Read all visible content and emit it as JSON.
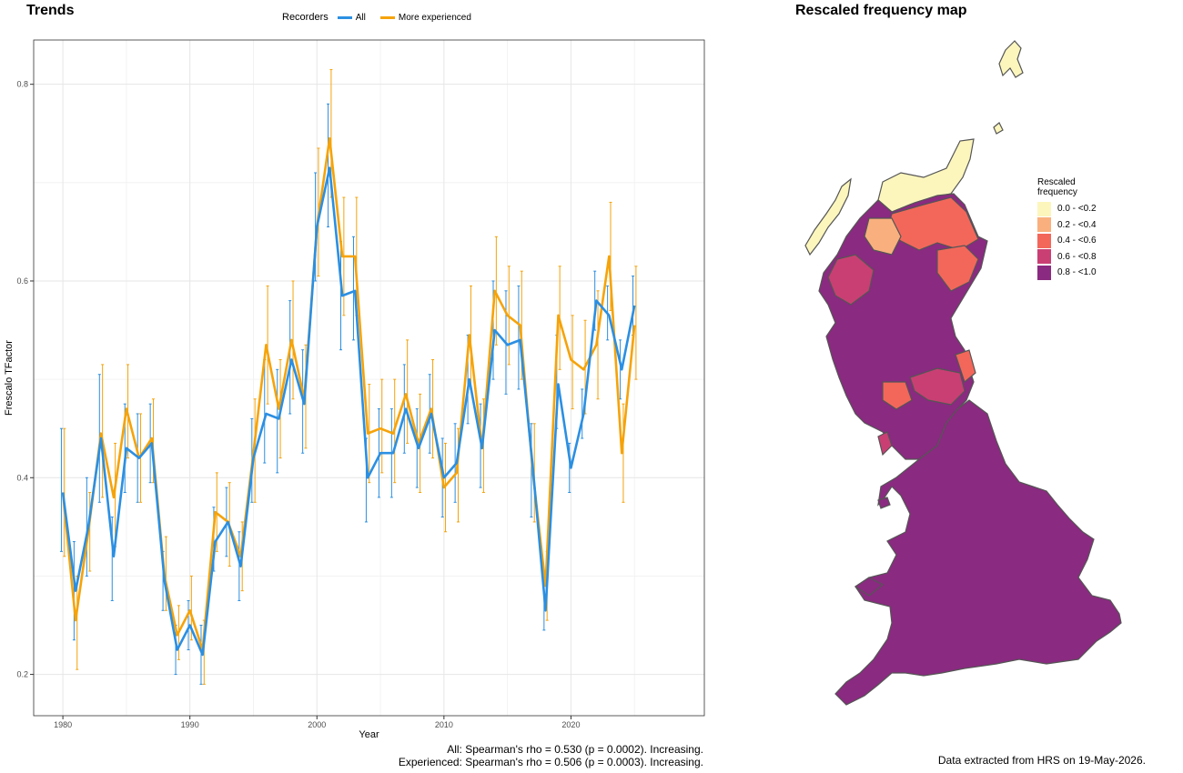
{
  "trends": {
    "title": "Trends",
    "legend_title": "Recorders",
    "xlabel": "Year",
    "ylabel": "Frescalo TFactor",
    "stats_all": "All: Spearman's rho = 0.530 (p = 0.0002). Increasing.",
    "stats_experienced": "Experienced: Spearman's rho = 0.506 (p = 0.0003). Increasing."
  },
  "map": {
    "title": "Rescaled frequency map",
    "legend_title": "Rescaled\nfrequency",
    "legend_items": [
      {
        "label": "0.0 - <0.2",
        "color": "#FCF6BD"
      },
      {
        "label": "0.2 - <0.4",
        "color": "#F9B07E"
      },
      {
        "label": "0.4 - <0.6",
        "color": "#F3675B"
      },
      {
        "label": "0.6 - <0.8",
        "color": "#C93F74"
      },
      {
        "label": "0.8 - <1.0",
        "color": "#8A2A80"
      }
    ],
    "footnote": "Data extracted from HRS on 19-May-2026."
  },
  "chart_data": {
    "type": "line",
    "x": [
      1980,
      1981,
      1982,
      1983,
      1984,
      1985,
      1986,
      1987,
      1988,
      1989,
      1990,
      1991,
      1992,
      1993,
      1994,
      1995,
      1996,
      1997,
      1998,
      1999,
      2000,
      2001,
      2002,
      2003,
      2004,
      2005,
      2006,
      2007,
      2008,
      2009,
      2010,
      2011,
      2012,
      2013,
      2014,
      2015,
      2016,
      2017,
      2018,
      2019,
      2020,
      2021,
      2022,
      2023,
      2024,
      2025
    ],
    "xticks": [
      1980,
      1990,
      2000,
      2010,
      2020
    ],
    "yticks": [
      0.2,
      0.4,
      0.6,
      0.8
    ],
    "xlim": [
      1977.7,
      2030.5
    ],
    "ylim": [
      0.158,
      0.845
    ],
    "xlabel": "Year",
    "ylabel": "Frescalo TFactor",
    "grid": true,
    "legend_position": "top",
    "series": [
      {
        "name": "All",
        "color": "#2B8FE2",
        "values": [
          0.385,
          0.285,
          0.35,
          0.44,
          0.32,
          0.43,
          0.42,
          0.435,
          0.295,
          0.225,
          0.25,
          0.22,
          0.335,
          0.355,
          0.31,
          0.42,
          0.465,
          0.46,
          0.52,
          0.475,
          0.655,
          0.715,
          0.585,
          0.59,
          0.4,
          0.425,
          0.425,
          0.47,
          0.43,
          0.465,
          0.4,
          0.415,
          0.5,
          0.43,
          0.55,
          0.535,
          0.54,
          0.41,
          0.265,
          0.495,
          0.41,
          0.465,
          0.58,
          0.565,
          0.51,
          0.575
        ],
        "lower": [
          0.325,
          0.235,
          0.3,
          0.375,
          0.275,
          0.385,
          0.375,
          0.395,
          0.265,
          0.2,
          0.225,
          0.19,
          0.305,
          0.32,
          0.275,
          0.375,
          0.415,
          0.405,
          0.465,
          0.425,
          0.6,
          0.655,
          0.53,
          0.54,
          0.355,
          0.38,
          0.38,
          0.425,
          0.39,
          0.425,
          0.36,
          0.375,
          0.455,
          0.39,
          0.5,
          0.485,
          0.49,
          0.36,
          0.245,
          0.45,
          0.385,
          0.44,
          0.55,
          0.54,
          0.48,
          0.545
        ],
        "upper": [
          0.45,
          0.335,
          0.4,
          0.505,
          0.36,
          0.475,
          0.465,
          0.475,
          0.325,
          0.25,
          0.275,
          0.25,
          0.37,
          0.39,
          0.345,
          0.46,
          0.52,
          0.51,
          0.58,
          0.53,
          0.71,
          0.78,
          0.64,
          0.645,
          0.44,
          0.47,
          0.47,
          0.515,
          0.47,
          0.505,
          0.44,
          0.455,
          0.545,
          0.475,
          0.6,
          0.59,
          0.595,
          0.455,
          0.29,
          0.545,
          0.435,
          0.49,
          0.61,
          0.595,
          0.54,
          0.605
        ]
      },
      {
        "name": "More experienced",
        "color": "#F5A30A",
        "values": [
          0.385,
          0.255,
          0.345,
          0.445,
          0.38,
          0.47,
          0.42,
          0.44,
          0.3,
          0.24,
          0.265,
          0.225,
          0.365,
          0.355,
          0.32,
          0.425,
          0.535,
          0.47,
          0.54,
          0.48,
          0.655,
          0.745,
          0.625,
          0.625,
          0.445,
          0.45,
          0.445,
          0.485,
          0.435,
          0.47,
          0.39,
          0.405,
          0.545,
          0.43,
          0.59,
          0.565,
          0.555,
          0.405,
          0.29,
          0.565,
          0.52,
          0.51,
          0.535,
          0.625,
          0.425,
          0.555
        ],
        "lower": [
          0.32,
          0.205,
          0.305,
          0.38,
          0.33,
          0.42,
          0.375,
          0.395,
          0.265,
          0.215,
          0.235,
          0.19,
          0.325,
          0.31,
          0.285,
          0.375,
          0.475,
          0.42,
          0.48,
          0.43,
          0.605,
          0.685,
          0.565,
          0.565,
          0.395,
          0.405,
          0.395,
          0.435,
          0.385,
          0.42,
          0.345,
          0.355,
          0.49,
          0.385,
          0.535,
          0.515,
          0.5,
          0.355,
          0.255,
          0.51,
          0.47,
          0.465,
          0.48,
          0.57,
          0.375,
          0.5
        ],
        "upper": [
          0.45,
          0.3,
          0.385,
          0.515,
          0.435,
          0.515,
          0.465,
          0.48,
          0.34,
          0.27,
          0.3,
          0.255,
          0.405,
          0.395,
          0.355,
          0.48,
          0.595,
          0.52,
          0.6,
          0.535,
          0.735,
          0.815,
          0.685,
          0.685,
          0.495,
          0.5,
          0.5,
          0.54,
          0.485,
          0.52,
          0.435,
          0.45,
          0.595,
          0.48,
          0.645,
          0.615,
          0.61,
          0.455,
          0.325,
          0.615,
          0.565,
          0.56,
          0.59,
          0.68,
          0.475,
          0.615
        ]
      }
    ]
  }
}
